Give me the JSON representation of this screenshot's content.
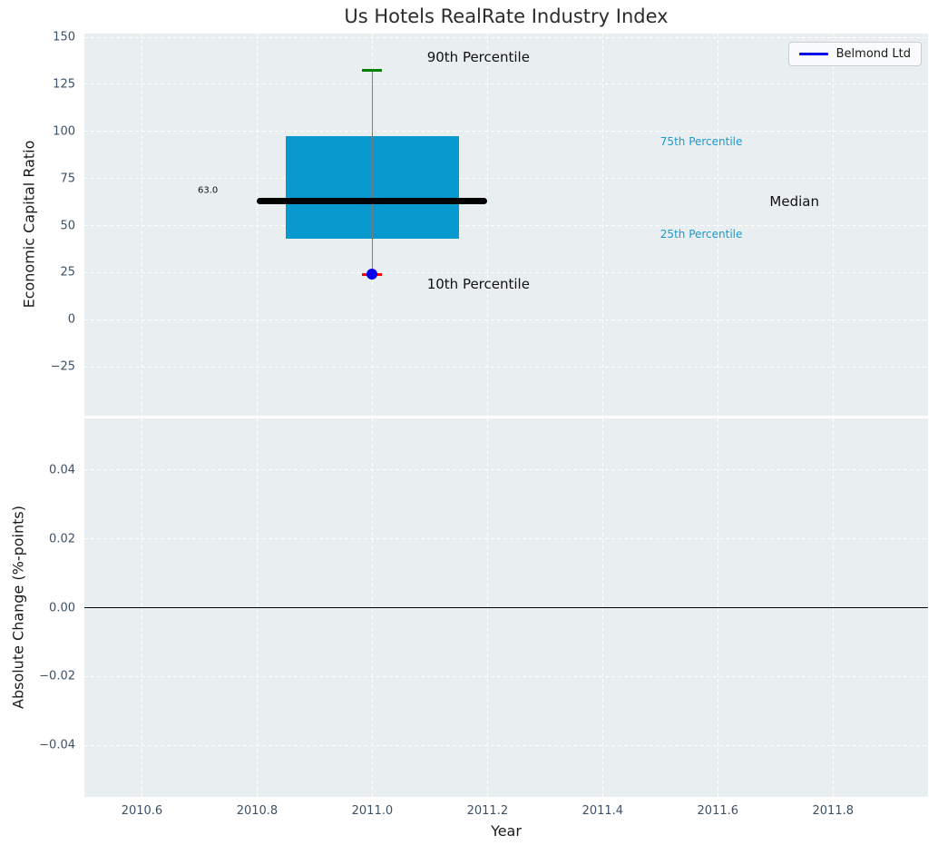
{
  "chart_data": [
    {
      "type": "boxplot",
      "title": "Us Hotels RealRate Industry Index",
      "ylabel": "Economic Capital Ratio",
      "xlim": [
        2010.5,
        2011.965
      ],
      "ylim": [
        -51,
        152
      ],
      "grid": true,
      "yticks": [
        {
          "v": 150,
          "label": "150"
        },
        {
          "v": 125,
          "label": "125"
        },
        {
          "v": 100,
          "label": "100"
        },
        {
          "v": 75,
          "label": "75"
        },
        {
          "v": 50,
          "label": "50"
        },
        {
          "v": 25,
          "label": "25"
        },
        {
          "v": 0,
          "label": "0"
        },
        {
          "v": -25,
          "label": "−25"
        }
      ],
      "xgrid": [
        2010.6,
        2010.8,
        2011.0,
        2011.2,
        2011.4,
        2011.6,
        2011.8
      ],
      "legend": {
        "label": "Belmond Ltd",
        "color": "#0000ee",
        "position": "upper right"
      },
      "box": {
        "x_center": 2011.0,
        "box_left": 2010.85,
        "box_right": 2011.15,
        "q1": 43,
        "median": 63.0,
        "q3": 97.5,
        "p10": 24,
        "p90": 132.5,
        "box_color": "#0899cf",
        "median_line": {
          "left": 2010.8,
          "right": 2011.2,
          "color": "#000000"
        },
        "whisker_color": "#7a7a7a",
        "p90_cap_color": "#008000",
        "p10_cap_color": "#ff0000"
      },
      "company_point": {
        "label": "Belmond Ltd",
        "x": 2011.0,
        "y": 24,
        "color": "#0000ee"
      },
      "annotations": [
        {
          "text": "90th Percentile",
          "x": 2011.095,
          "y": 139.5,
          "color": "#111111",
          "size": 15,
          "ha": "left"
        },
        {
          "text": "75th Percentile",
          "x": 2011.5,
          "y": 94.5,
          "color": "#189ad3",
          "size": 12,
          "ha": "left"
        },
        {
          "text": "Median",
          "x": 2011.69,
          "y": 63.0,
          "color": "#111111",
          "size": 15,
          "ha": "left"
        },
        {
          "text": "25th Percentile",
          "x": 2011.5,
          "y": 45.5,
          "color": "#189ad3",
          "size": 12,
          "ha": "left"
        },
        {
          "text": "10th Percentile",
          "x": 2011.095,
          "y": 19.0,
          "color": "#111111",
          "size": 15,
          "ha": "left"
        },
        {
          "text": "63.0",
          "x": 2010.732,
          "y": 68.5,
          "color": "#111111",
          "size": 10,
          "ha": "right"
        }
      ]
    },
    {
      "type": "line",
      "ylabel": "Absolute Change (%-points)",
      "xlabel": "Year",
      "xlim": [
        2010.5,
        2011.965
      ],
      "ylim": [
        -0.055,
        0.055
      ],
      "grid": true,
      "yticks": [
        {
          "v": 0.04,
          "label": "0.04"
        },
        {
          "v": 0.02,
          "label": "0.02"
        },
        {
          "v": 0,
          "label": "0.00"
        },
        {
          "v": -0.02,
          "label": "−0.02"
        },
        {
          "v": -0.04,
          "label": "−0.04"
        }
      ],
      "xticks": [
        {
          "v": 2010.6,
          "label": "2010.6"
        },
        {
          "v": 2010.8,
          "label": "2010.8"
        },
        {
          "v": 2011.0,
          "label": "2011.0"
        },
        {
          "v": 2011.2,
          "label": "2011.2"
        },
        {
          "v": 2011.4,
          "label": "2011.4"
        },
        {
          "v": 2011.6,
          "label": "2011.6"
        },
        {
          "v": 2011.8,
          "label": "2011.8"
        }
      ],
      "zero_line": {
        "y": 0.0,
        "color": "#000000"
      },
      "series": []
    }
  ],
  "colors": {
    "axes_background": "#e9eef0",
    "grid": "#ffffff",
    "tick_label": "#3d5166"
  }
}
